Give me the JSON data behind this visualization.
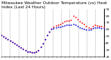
{
  "title": "Milwaukee Weather Outdoor Temperature (vs) Heat Index (Last 24 Hours)",
  "temp_color": "#ff0000",
  "heat_color": "#0000dd",
  "background_color": "#ffffff",
  "grid_color": "#888888",
  "ylim": [
    20,
    90
  ],
  "xlim": [
    0,
    47
  ],
  "num_points": 48,
  "temp_values": [
    52,
    50,
    48,
    46,
    44,
    42,
    40,
    38,
    36,
    34,
    32,
    30,
    28,
    27,
    26,
    26,
    27,
    30,
    35,
    40,
    46,
    52,
    57,
    61,
    64,
    66,
    67,
    68,
    70,
    72,
    73,
    73,
    74,
    80,
    78,
    75,
    72,
    70,
    68,
    65,
    63,
    62,
    65,
    67,
    66,
    65,
    65,
    64
  ],
  "heat_values": [
    52,
    50,
    48,
    46,
    44,
    42,
    40,
    38,
    36,
    34,
    32,
    30,
    28,
    27,
    26,
    26,
    27,
    30,
    35,
    40,
    46,
    52,
    57,
    61,
    62,
    63,
    64,
    64,
    65,
    66,
    67,
    67,
    67,
    68,
    67,
    65,
    63,
    62,
    61,
    60,
    60,
    60,
    62,
    63,
    63,
    63,
    62,
    62
  ],
  "ytick_values": [
    20,
    30,
    40,
    50,
    60,
    70,
    80,
    90
  ],
  "ytick_labels": [
    "20",
    "30",
    "40",
    "50",
    "60",
    "70",
    "80",
    "90"
  ],
  "num_vgrid": 13,
  "title_fontsize": 4.2,
  "tick_fontsize": 3.2,
  "marker_size": 2.0
}
